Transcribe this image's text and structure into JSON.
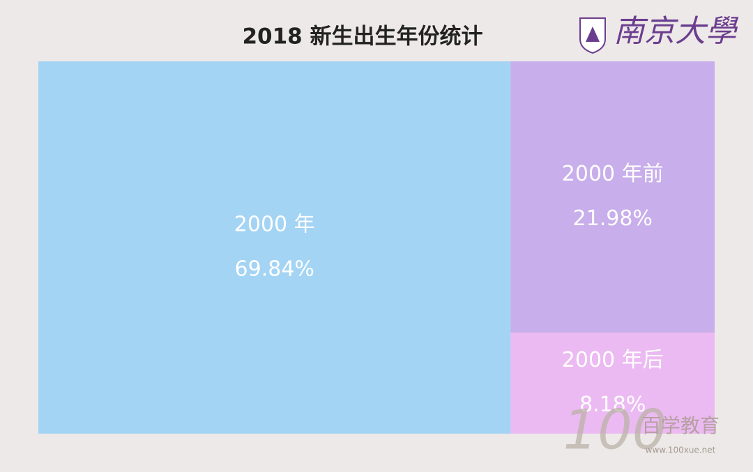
{
  "chart_data": {
    "type": "treemap",
    "title": "2018 新生出生年份统计",
    "categories": [
      "2000 年",
      "2000 年前",
      "2000 年后"
    ],
    "values": [
      69.84,
      21.98,
      8.18
    ],
    "value_labels": [
      "69.84%",
      "21.98%",
      "8.18%"
    ],
    "colors": [
      "#a4d4f4",
      "#c8aeea",
      "#ecbaf2"
    ]
  },
  "logo": "南京大學",
  "watermark": {
    "number": "100",
    "name": "百学教育",
    "url": "www.100xue.net"
  }
}
